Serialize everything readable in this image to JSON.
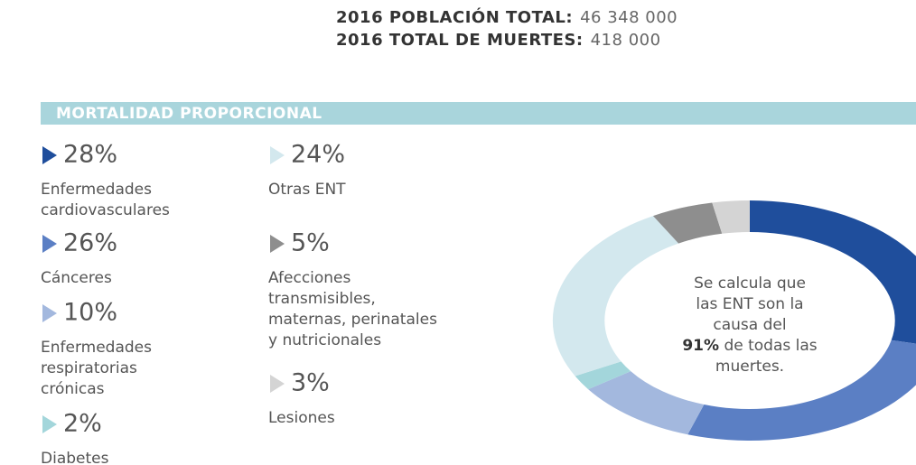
{
  "header": {
    "population_label": "2016 POBLACIÓN TOTAL:",
    "population_value": "46 348 000",
    "deaths_label": "2016 TOTAL DE MUERTES:",
    "deaths_value": "418 000"
  },
  "chart_data": {
    "type": "donut",
    "title": "MORTALIDAD PROPORCIONAL",
    "categories": [
      "Enfermedades\ncardiovasculares",
      "Cánceres",
      "Enfermedades\nrespiratorias\ncrónicas",
      "Diabetes",
      "Otras ENT",
      "Afecciones\ntransmisibles,\nmaternas, perinatales\ny nutricionales",
      "Lesiones"
    ],
    "values": [
      28,
      26,
      10,
      2,
      24,
      5,
      3
    ],
    "value_labels": [
      "28%",
      "26%",
      "10%",
      "2%",
      "24%",
      "5%",
      "3%"
    ],
    "colors": [
      "#1f4e9c",
      "#5b7fc4",
      "#a3b8de",
      "#a3d6db",
      "#d3e8ee",
      "#8e8e8e",
      "#d4d4d4"
    ],
    "annotation": [
      "Se calcula que",
      "las ENT son la",
      "causa del",
      "91%",
      " de todas las",
      "muertes."
    ]
  }
}
